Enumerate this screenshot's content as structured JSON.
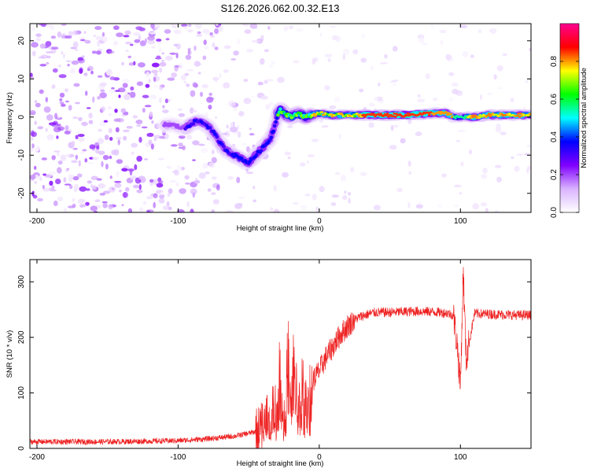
{
  "chart_data": [
    {
      "type": "heatmap",
      "title": "S126.2026.062.00.32.E13",
      "xlabel": "Height of straight line (km)",
      "ylabel": "Frequency (Hz)",
      "xlim": [
        -205,
        150
      ],
      "ylim": [
        -25,
        24.5
      ],
      "xticks": [
        -200,
        -100,
        0,
        100
      ],
      "yticks": [
        -20,
        -10,
        0,
        10,
        20
      ],
      "colorbar": {
        "label": "Normalized spectral amplitude",
        "range": [
          0,
          1
        ],
        "ticks": [
          0.0,
          0.2,
          0.4,
          0.6,
          0.8
        ],
        "colormap": [
          "#ffffff",
          "#d9b3ff",
          "#8000ff",
          "#0000ff",
          "#00ffff",
          "#00ff00",
          "#ffff00",
          "#ff0000",
          "#ff0090"
        ]
      },
      "ridge": {
        "description": "frequency of peak spectral amplitude vs height",
        "x": [
          -105,
          -100,
          -95,
          -90,
          -85,
          -80,
          -75,
          -70,
          -65,
          -60,
          -55,
          -50,
          -45,
          -40,
          -35,
          -32,
          -30,
          -28,
          -25,
          -20,
          -15,
          -10,
          -5,
          0,
          10,
          20,
          40,
          60,
          80,
          90,
          95,
          100,
          110,
          120,
          130,
          140,
          150
        ],
        "y": [
          -2,
          -2.5,
          -3,
          -1.5,
          -1,
          -2,
          -4,
          -7,
          -9,
          -10,
          -11,
          -12,
          -10,
          -8,
          -6,
          -3,
          0,
          2,
          1,
          0,
          1,
          0,
          0.5,
          1,
          0.5,
          0.5,
          0.5,
          0.5,
          1,
          1,
          0,
          0,
          0,
          0.5,
          0.5,
          0.5,
          0.5
        ]
      }
    },
    {
      "type": "line",
      "xlabel": "Height of straight line (km)",
      "ylabel": "SNR (10 * v/v)",
      "xlim": [
        -205,
        150
      ],
      "ylim": [
        0,
        340
      ],
      "xticks": [
        -200,
        -100,
        0,
        100
      ],
      "yticks": [
        0,
        100,
        200,
        300
      ],
      "series": [
        {
          "name": "SNR",
          "color": "#ee2222",
          "x": [
            -205,
            -180,
            -150,
            -120,
            -100,
            -80,
            -60,
            -45,
            -40,
            -38,
            -35,
            -32,
            -30,
            -28,
            -25,
            -22,
            -20,
            -18,
            -15,
            -12,
            -10,
            -5,
            0,
            5,
            10,
            15,
            20,
            25,
            30,
            35,
            40,
            50,
            60,
            70,
            80,
            90,
            95,
            98,
            100,
            102,
            104,
            110,
            120,
            130,
            140,
            150
          ],
          "y": [
            12,
            12,
            12,
            13,
            14,
            17,
            22,
            30,
            40,
            70,
            25,
            110,
            50,
            160,
            40,
            200,
            60,
            190,
            60,
            140,
            80,
            120,
            140,
            165,
            185,
            205,
            220,
            232,
            238,
            242,
            245,
            245,
            246,
            247,
            246,
            244,
            240,
            180,
            110,
            320,
            160,
            243,
            242,
            241,
            240,
            240
          ]
        }
      ]
    }
  ]
}
